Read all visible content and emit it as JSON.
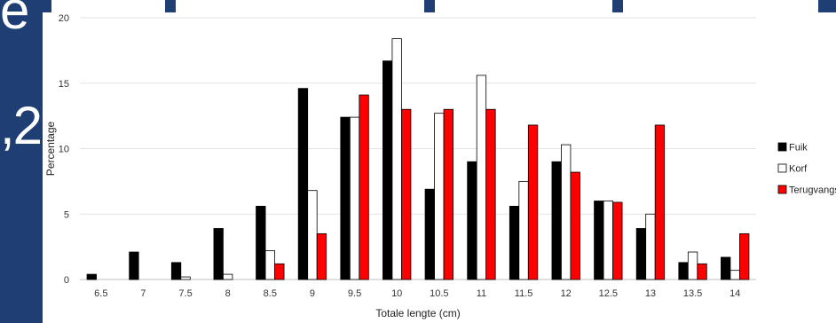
{
  "background": {
    "panel_color": "#1f3f74",
    "fragment_top": "e",
    "fragment_mid": ",2"
  },
  "chart_data": {
    "type": "bar",
    "categories": [
      "6.5",
      "7",
      "7.5",
      "8",
      "8.5",
      "9",
      "9.5",
      "10",
      "10.5",
      "11",
      "11.5",
      "12",
      "12.5",
      "13",
      "13.5",
      "14"
    ],
    "series": [
      {
        "name": "Fuik",
        "color": "#000000",
        "stroke": "#000000",
        "values": [
          0.4,
          2.1,
          1.3,
          3.9,
          5.6,
          14.6,
          12.4,
          16.7,
          6.9,
          9.0,
          5.6,
          9.0,
          6.0,
          3.9,
          1.3,
          1.7
        ]
      },
      {
        "name": "Korf",
        "color": "#ffffff",
        "stroke": "#000000",
        "values": [
          0,
          0,
          0.2,
          0.4,
          2.2,
          6.8,
          12.4,
          18.4,
          12.7,
          15.6,
          7.5,
          10.3,
          6.0,
          5.0,
          2.1,
          0.7
        ]
      },
      {
        "name": "Terugvangst",
        "color": "#ff0000",
        "stroke": "#000000",
        "values": [
          0,
          0,
          0,
          0,
          1.2,
          3.5,
          14.1,
          13.0,
          13.0,
          13.0,
          11.8,
          8.2,
          5.9,
          11.8,
          1.2,
          3.5
        ]
      }
    ],
    "title": "",
    "xlabel": "Totale lengte (cm)",
    "ylabel": "Percentage",
    "ylim": [
      0,
      20
    ],
    "yticks": [
      "0",
      "5",
      "10",
      "15",
      "20"
    ],
    "grid": true,
    "legend_position": "right"
  }
}
